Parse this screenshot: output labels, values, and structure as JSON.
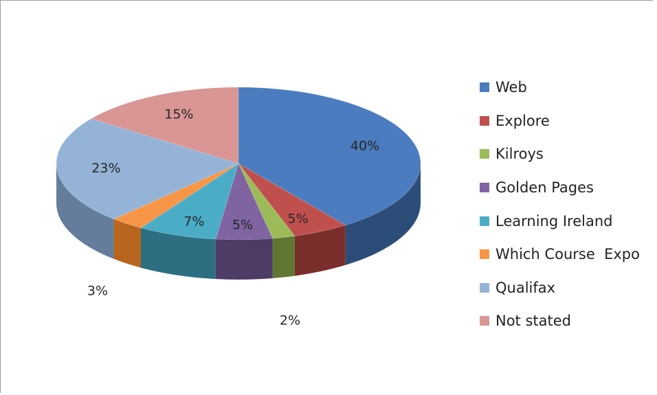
{
  "chart_data": {
    "type": "pie",
    "style": "3d",
    "legend_position": "right",
    "slices": [
      {
        "name": "Web",
        "value": 40,
        "label": "40%",
        "color": "#4A7CBF",
        "side_color": "#2C4D78"
      },
      {
        "name": "Explore",
        "value": 5,
        "label": "5%",
        "color": "#C0504D",
        "side_color": "#7A2E2C"
      },
      {
        "name": "Kilroys",
        "value": 2,
        "label": "2%",
        "color": "#9BBB59",
        "side_color": "#5F7733"
      },
      {
        "name": "Golden Pages",
        "value": 5,
        "label": "5%",
        "color": "#8064A2",
        "side_color": "#4E3B66"
      },
      {
        "name": "Learning Ireland",
        "value": 7,
        "label": "7%",
        "color": "#4BACC6",
        "side_color": "#2C6F80"
      },
      {
        "name": "Which Course  Expo",
        "value": 3,
        "label": "3%",
        "color": "#F79646",
        "side_color": "#B8651F"
      },
      {
        "name": "Qualifax",
        "value": 23,
        "label": "23%",
        "color": "#95B3D7",
        "side_color": "#647D9C"
      },
      {
        "name": "Not stated",
        "value": 15,
        "label": "15%",
        "color": "#D99694",
        "side_color": "#9A5E5C"
      }
    ]
  }
}
